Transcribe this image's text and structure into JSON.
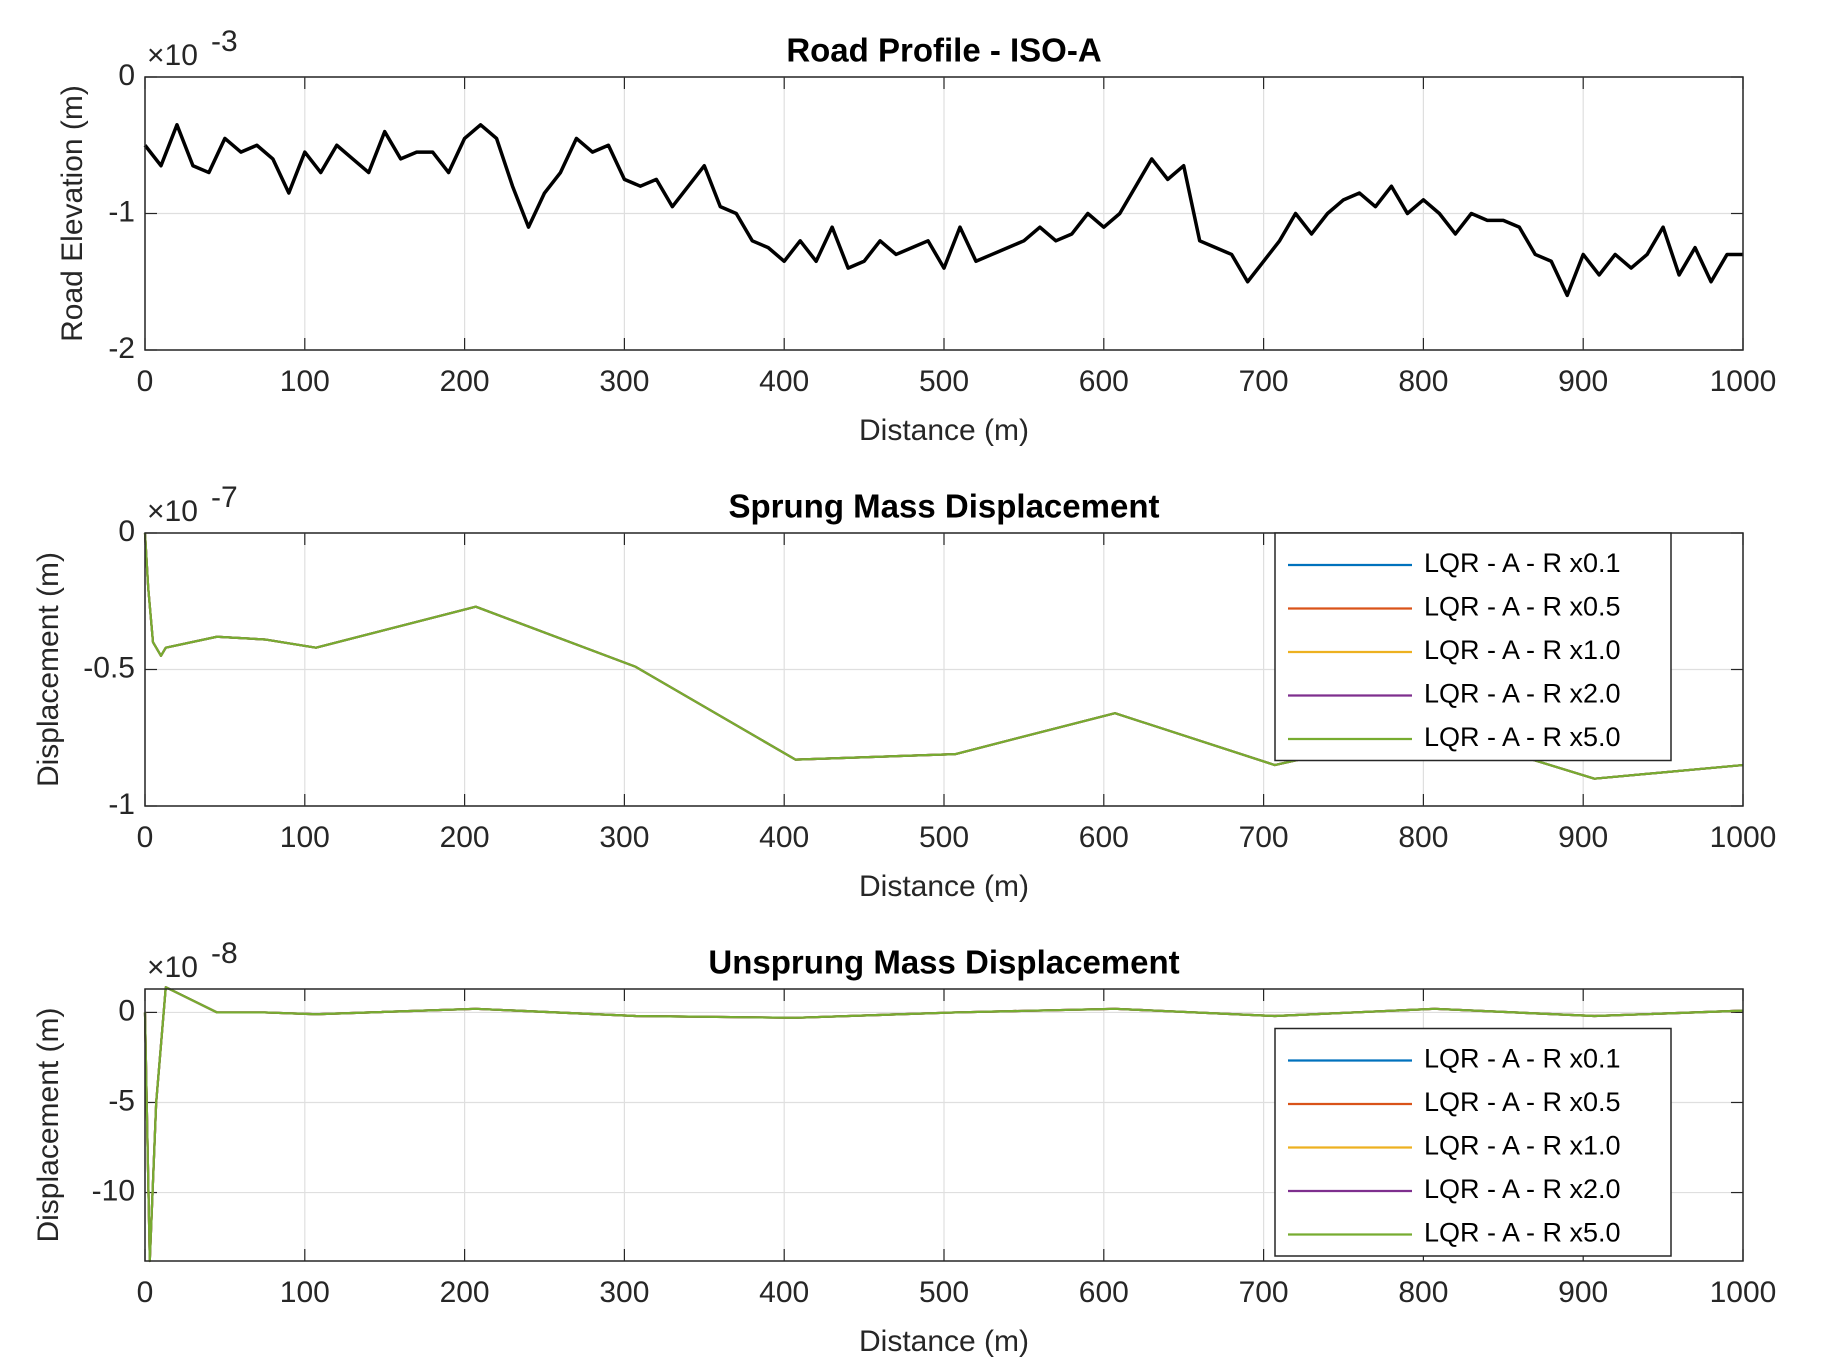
{
  "chart_data": [
    {
      "type": "line",
      "title": "Road Profile - ISO-A",
      "xlabel": "Distance (m)",
      "ylabel": "Road Elevation (m)",
      "y_exponent_base": "×10",
      "y_exponent": "-3",
      "x": [
        0,
        10,
        20,
        30,
        40,
        50,
        60,
        70,
        80,
        90,
        100,
        110,
        120,
        130,
        140,
        150,
        160,
        170,
        180,
        190,
        200,
        210,
        220,
        230,
        240,
        250,
        260,
        270,
        280,
        290,
        300,
        310,
        320,
        330,
        340,
        350,
        360,
        370,
        380,
        390,
        400,
        410,
        420,
        430,
        440,
        450,
        460,
        470,
        480,
        490,
        500,
        510,
        520,
        530,
        540,
        550,
        560,
        570,
        580,
        590,
        600,
        610,
        620,
        630,
        640,
        650,
        660,
        670,
        680,
        690,
        700,
        710,
        720,
        730,
        740,
        750,
        760,
        770,
        780,
        790,
        800,
        810,
        820,
        830,
        840,
        850,
        860,
        870,
        880,
        890,
        900,
        910,
        920,
        930,
        940,
        950,
        960,
        970,
        980,
        990,
        1000
      ],
      "series": [
        {
          "color": "#000000",
          "values": [
            -0.5,
            -0.65,
            -0.35,
            -0.65,
            -0.7,
            -0.45,
            -0.55,
            -0.5,
            -0.6,
            -0.85,
            -0.55,
            -0.7,
            -0.5,
            -0.6,
            -0.7,
            -0.4,
            -0.6,
            -0.55,
            -0.55,
            -0.7,
            -0.45,
            -0.35,
            -0.45,
            -0.8,
            -1.1,
            -0.85,
            -0.7,
            -0.45,
            -0.55,
            -0.5,
            -0.75,
            -0.8,
            -0.75,
            -0.95,
            -0.8,
            -0.65,
            -0.95,
            -1.0,
            -1.2,
            -1.25,
            -1.35,
            -1.2,
            -1.35,
            -1.1,
            -1.4,
            -1.35,
            -1.2,
            -1.3,
            -1.25,
            -1.2,
            -1.4,
            -1.1,
            -1.35,
            -1.3,
            -1.25,
            -1.2,
            -1.1,
            -1.2,
            -1.15,
            -1.0,
            -1.1,
            -1.0,
            -0.8,
            -0.6,
            -0.75,
            -0.65,
            -1.2,
            -1.25,
            -1.3,
            -1.5,
            -1.35,
            -1.2,
            -1.0,
            -1.15,
            -1.0,
            -0.9,
            -0.85,
            -0.95,
            -0.8,
            -1.0,
            -0.9,
            -1.0,
            -1.15,
            -1.0,
            -1.05,
            -1.05,
            -1.1,
            -1.3,
            -1.35,
            -1.6,
            -1.3,
            -1.45,
            -1.3,
            -1.4,
            -1.3,
            -1.1,
            -1.45,
            -1.25,
            -1.5,
            -1.3,
            -1.3
          ]
        }
      ],
      "xlim": [
        0,
        1000
      ],
      "ylim": [
        -2,
        0
      ],
      "xticks": [
        0,
        100,
        200,
        300,
        400,
        500,
        600,
        700,
        800,
        900,
        1000
      ],
      "yticks": [
        -2,
        -1,
        0
      ],
      "grid": true
    },
    {
      "type": "line",
      "title": "Sprung Mass Displacement",
      "xlabel": "Distance (m)",
      "ylabel": "Displacement (m)",
      "y_exponent_base": "×10",
      "y_exponent": "-7",
      "x": [
        0,
        2,
        5,
        10,
        13,
        45,
        75,
        107,
        207,
        307,
        407,
        507,
        607,
        707,
        807,
        907,
        1000
      ],
      "series": [
        {
          "name": "LQR - A - R x0.1",
          "color": "#0072BD",
          "values": [
            0,
            -0.2,
            -0.4,
            -0.45,
            -0.42,
            -0.38,
            -0.39,
            -0.42,
            -0.27,
            -0.49,
            -0.83,
            -0.81,
            -0.66,
            -0.85,
            -0.72,
            -0.9,
            -0.85
          ]
        },
        {
          "name": "LQR - A - R x0.5",
          "color": "#D95319",
          "values": [
            0,
            -0.2,
            -0.4,
            -0.45,
            -0.42,
            -0.38,
            -0.39,
            -0.42,
            -0.27,
            -0.49,
            -0.83,
            -0.81,
            -0.66,
            -0.85,
            -0.72,
            -0.9,
            -0.85
          ]
        },
        {
          "name": "LQR - A - R x1.0",
          "color": "#EDB120",
          "values": [
            0,
            -0.2,
            -0.4,
            -0.45,
            -0.42,
            -0.38,
            -0.39,
            -0.42,
            -0.27,
            -0.49,
            -0.83,
            -0.81,
            -0.66,
            -0.85,
            -0.72,
            -0.9,
            -0.85
          ]
        },
        {
          "name": "LQR - A - R x2.0",
          "color": "#7E2F8E",
          "values": [
            0,
            -0.2,
            -0.4,
            -0.45,
            -0.42,
            -0.38,
            -0.39,
            -0.42,
            -0.27,
            -0.49,
            -0.83,
            -0.81,
            -0.66,
            -0.85,
            -0.72,
            -0.9,
            -0.85
          ]
        },
        {
          "name": "LQR - A - R x5.0",
          "color": "#77AC30",
          "values": [
            0,
            -0.2,
            -0.4,
            -0.45,
            -0.42,
            -0.38,
            -0.39,
            -0.42,
            -0.27,
            -0.49,
            -0.83,
            -0.81,
            -0.66,
            -0.85,
            -0.72,
            -0.9,
            -0.85
          ]
        }
      ],
      "xlim": [
        0,
        1000
      ],
      "ylim": [
        -1,
        0
      ],
      "xticks": [
        0,
        100,
        200,
        300,
        400,
        500,
        600,
        700,
        800,
        900,
        1000
      ],
      "yticks": [
        -1,
        -0.5,
        0
      ],
      "grid": true,
      "legend": "northeast"
    },
    {
      "type": "line",
      "title": "Unsprung Mass Displacement",
      "xlabel": "Distance (m)",
      "ylabel": "Displacement (m)",
      "y_exponent_base": "×10",
      "y_exponent": "-8",
      "x": [
        0,
        3,
        7,
        13,
        45,
        75,
        107,
        207,
        307,
        407,
        507,
        607,
        707,
        807,
        907,
        1000
      ],
      "series": [
        {
          "name": "LQR - A - R x0.1",
          "color": "#0072BD",
          "values": [
            0,
            -13.8,
            -5,
            1.4,
            0,
            0,
            -0.1,
            0.2,
            -0.2,
            -0.3,
            0,
            0.2,
            -0.2,
            0.2,
            -0.2,
            0.1
          ]
        },
        {
          "name": "LQR - A - R x0.5",
          "color": "#D95319",
          "values": [
            0,
            -13.8,
            -5,
            1.4,
            0,
            0,
            -0.1,
            0.2,
            -0.2,
            -0.3,
            0,
            0.2,
            -0.2,
            0.2,
            -0.2,
            0.1
          ]
        },
        {
          "name": "LQR - A - R x1.0",
          "color": "#EDB120",
          "values": [
            0,
            -13.8,
            -5,
            1.4,
            0,
            0,
            -0.1,
            0.2,
            -0.2,
            -0.3,
            0,
            0.2,
            -0.2,
            0.2,
            -0.2,
            0.1
          ]
        },
        {
          "name": "LQR - A - R x2.0",
          "color": "#7E2F8E",
          "values": [
            0,
            -13.8,
            -5,
            1.4,
            0,
            0,
            -0.1,
            0.2,
            -0.2,
            -0.3,
            0,
            0.2,
            -0.2,
            0.2,
            -0.2,
            0.1
          ]
        },
        {
          "name": "LQR - A - R x5.0",
          "color": "#77AC30",
          "values": [
            0,
            -13.8,
            -5,
            1.4,
            0,
            0,
            -0.1,
            0.2,
            -0.2,
            -0.3,
            0,
            0.2,
            -0.2,
            0.2,
            -0.2,
            0.1
          ]
        }
      ],
      "xlim": [
        0,
        1000
      ],
      "ylim": [
        -13.8,
        1.3
      ],
      "xticks": [
        0,
        100,
        200,
        300,
        400,
        500,
        600,
        700,
        800,
        900,
        1000
      ],
      "yticks": [
        -10,
        -5,
        0
      ],
      "grid": true,
      "legend": "southeast"
    }
  ]
}
